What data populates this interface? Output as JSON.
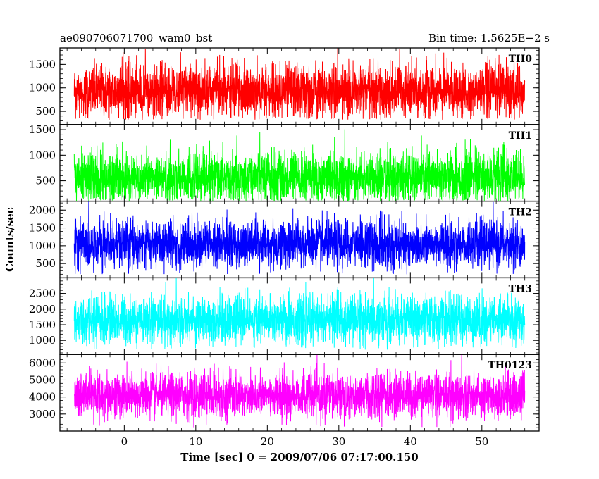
{
  "chart_data": {
    "type": "line",
    "title_left": "ae090706071700_wam0_bst",
    "title_right": "Bin time: 1.5625E−2 s",
    "xlabel": "Time [sec] 0 = 2009/07/06 07:17:00.150",
    "ylabel": "Counts/sec",
    "xlim": [
      -9,
      58
    ],
    "x_data_range": [
      -7,
      56
    ],
    "xticks": [
      0,
      10,
      20,
      30,
      40,
      50
    ],
    "series": [
      {
        "name": "TH0",
        "color": "#ff0000",
        "ylim": [
          220,
          1850
        ],
        "yticks": [
          500,
          1000,
          1500
        ],
        "mean": 920,
        "amplitude_low": 320,
        "amplitude_high": 1850,
        "spread": 280
      },
      {
        "name": "TH1",
        "color": "#00ff00",
        "ylim": [
          100,
          1600
        ],
        "yticks": [
          500,
          1000,
          1500
        ],
        "mean": 560,
        "amplitude_low": 100,
        "amplitude_high": 1600,
        "spread": 250
      },
      {
        "name": "TH2",
        "color": "#0000ff",
        "ylim": [
          100,
          2250
        ],
        "yticks": [
          500,
          1000,
          1500,
          2000
        ],
        "mean": 1050,
        "amplitude_low": 200,
        "amplitude_high": 2250,
        "spread": 330
      },
      {
        "name": "TH3",
        "color": "#00ffff",
        "ylim": [
          550,
          3000
        ],
        "yticks": [
          1000,
          1500,
          2000,
          2500
        ],
        "mean": 1650,
        "amplitude_low": 700,
        "amplitude_high": 3000,
        "spread": 380
      },
      {
        "name": "TH0123",
        "color": "#ff00ff",
        "ylim": [
          2000,
          6500
        ],
        "yticks": [
          3000,
          4000,
          5000,
          6000
        ],
        "mean": 4100,
        "amplitude_low": 2200,
        "amplitude_high": 6500,
        "spread": 650
      }
    ]
  }
}
